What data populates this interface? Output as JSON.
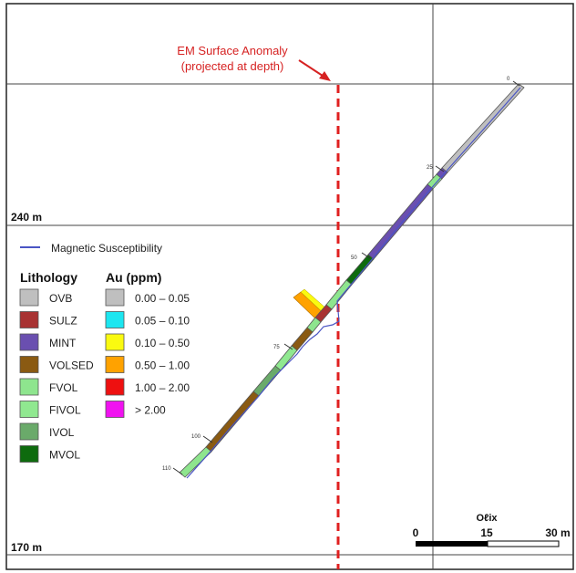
{
  "annotation": {
    "line1": "EM Surface Anomaly",
    "line2": "(projected at depth)",
    "color": "#e02020"
  },
  "elevations": {
    "upper": "240 m",
    "lower": "170 m"
  },
  "depth_ticks": [
    "0",
    "25",
    "50",
    "75",
    "100",
    "110"
  ],
  "legend": {
    "mag_label": "Magnetic Susceptibility",
    "mag_color": "#4a55c4",
    "lithology_title": "Lithology",
    "au_title": "Au (ppm)",
    "lithology": [
      {
        "label": "OVB",
        "color": "#bfbfbf"
      },
      {
        "label": "SULZ",
        "color": "#a83232"
      },
      {
        "label": "MINT",
        "color": "#6a4fb0"
      },
      {
        "label": "VOLSED",
        "color": "#8a5a12"
      },
      {
        "label": "FVOL",
        "color": "#8ee58e"
      },
      {
        "label": "FIVOL",
        "color": "#90e890"
      },
      {
        "label": "IVOL",
        "color": "#6aaa6a"
      },
      {
        "label": "MVOL",
        "color": "#0e6b0e"
      }
    ],
    "au": [
      {
        "label": "0.00 – 0.05",
        "color": "#bfbfbf"
      },
      {
        "label": "0.05 – 0.10",
        "color": "#1ce6f0"
      },
      {
        "label": "0.10 – 0.50",
        "color": "#fafa10"
      },
      {
        "label": "0.50 – 1.00",
        "color": "#ffa200"
      },
      {
        "label": "1.00 – 2.00",
        "color": "#ee1010"
      },
      {
        "label": "> 2.00",
        "color": "#f012f0"
      }
    ]
  },
  "scale_bar": {
    "labels": [
      "0",
      "15",
      "30 m"
    ],
    "north_label": "Oℓix"
  }
}
